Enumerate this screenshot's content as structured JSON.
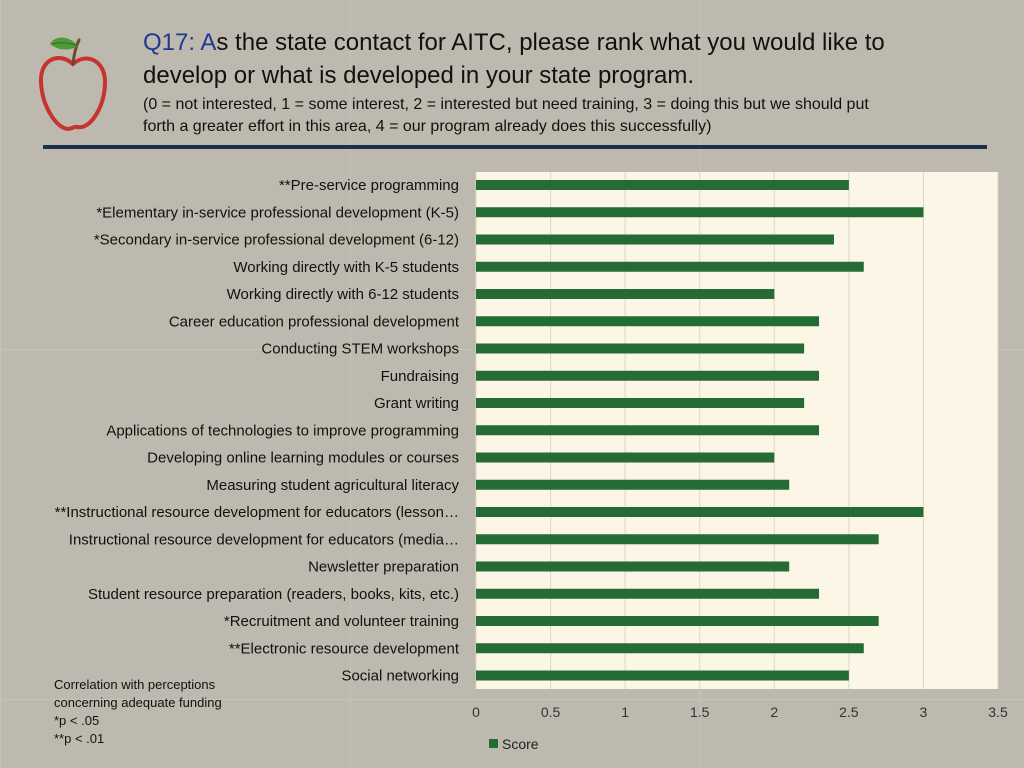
{
  "header": {
    "qnum": "Q17: A",
    "title_rest": "s the state contact for AITC, please rank what you would like to",
    "title_line2": "develop or what is developed in your state program.",
    "scale_line1": "(0 = not interested, 1 = some interest, 2 = interested but need training, 3 =  doing this but we should put",
    "scale_line2": "forth a greater effort in this area, 4 = our program already does this successfully)"
  },
  "footnote": {
    "line1": "Correlation with perceptions",
    "line2": "concerning adequate funding",
    "line3": "*p < .05",
    "line4": "**p < .01"
  },
  "colors": {
    "bar": "#256b34",
    "plot_bg": "#fcf6e6",
    "rule": "#1c2e52",
    "apple_red": "#c7332f",
    "leaf_green": "#4e9a3a"
  },
  "chart_data": {
    "type": "bar",
    "orientation": "horizontal",
    "categories": [
      "**Pre-service programming",
      "*Elementary in-service professional development (K-5)",
      "*Secondary in-service professional development (6-12)",
      "Working directly with K-5 students",
      "Working directly with 6-12 students",
      "Career education professional development",
      "Conducting STEM workshops",
      "Fundraising",
      "Grant writing",
      "Applications of technologies to improve programming",
      "Developing online learning modules or courses",
      "Measuring student agricultural literacy",
      "**Instructional resource development for educators (lesson…",
      "Instructional resource development for educators (media…",
      "Newsletter preparation",
      "Student resource preparation (readers, books, kits, etc.)",
      "*Recruitment and volunteer training",
      "**Electronic resource development",
      "Social networking"
    ],
    "series": [
      {
        "name": "Score",
        "values": [
          2.5,
          3.0,
          2.4,
          2.6,
          2.0,
          2.3,
          2.2,
          2.3,
          2.2,
          2.3,
          2.0,
          2.1,
          3.0,
          2.7,
          2.1,
          2.3,
          2.7,
          2.6,
          2.5
        ]
      }
    ],
    "xlim": [
      0,
      3.5
    ],
    "xticks": [
      "0",
      "0.5",
      "1",
      "1.5",
      "2",
      "2.5",
      "3",
      "3.5"
    ],
    "grid": true,
    "legend": "bottom"
  }
}
